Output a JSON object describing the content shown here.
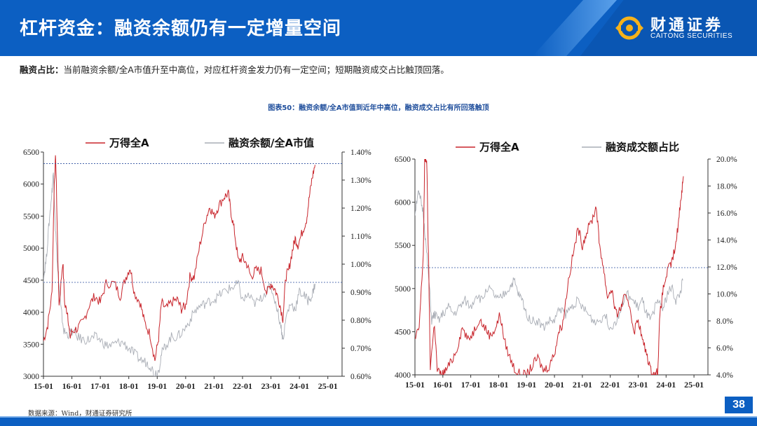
{
  "header": {
    "title": "杠杆资金：融资余额仍有一定增量空间",
    "brand_cn": "财通证券",
    "brand_en": "CAITONG SECURITIES",
    "color": "#0c5fc2"
  },
  "summary": {
    "label": "融资占比：",
    "text": "当前融资余额/全A市值升至中高位，对应杠杆资金发力仍有一定空间；短期融资成交占比触顶回落。"
  },
  "figure_title": "图表50：融资余额/全A市值到近年中高位，融资成交占比有所回落触顶",
  "source": "数据来源：Wind，财通证券研究所",
  "page_number": "38",
  "chart_data": [
    {
      "type": "line",
      "x": [
        "15-01",
        "16-01",
        "17-01",
        "18-01",
        "19-01",
        "20-01",
        "21-01",
        "22-01",
        "23-01",
        "24-01",
        "25-01"
      ],
      "y_left_lim": [
        3000,
        6500
      ],
      "y_left_ticks": [
        "3000",
        "3500",
        "4000",
        "4500",
        "5000",
        "5500",
        "6000",
        "6500"
      ],
      "y_right_lim": [
        0.006,
        0.014
      ],
      "y_right_ticks": [
        "0.60%",
        "0.70%",
        "0.80%",
        "0.90%",
        "1.00%",
        "1.10%",
        "1.20%",
        "1.30%",
        "1.40%"
      ],
      "reference_lines": [
        {
          "axis": "left",
          "value": 6320
        },
        {
          "axis": "right",
          "value": 0.00935
        }
      ],
      "legend_position": "top",
      "series": [
        {
          "name": "万得全A",
          "axis": "left",
          "color": "#c8252c",
          "values": [
            [
              0,
              3550
            ],
            [
              0.15,
              3800
            ],
            [
              0.3,
              4300
            ],
            [
              0.38,
              6000
            ],
            [
              0.43,
              6450
            ],
            [
              0.5,
              5000
            ],
            [
              0.55,
              4100
            ],
            [
              0.68,
              4800
            ],
            [
              0.75,
              4100
            ],
            [
              0.85,
              4000
            ],
            [
              0.93,
              3600
            ],
            [
              1,
              3700
            ],
            [
              1.2,
              3750
            ],
            [
              1.4,
              3850
            ],
            [
              1.6,
              4100
            ],
            [
              1.8,
              4250
            ],
            [
              2,
              4150
            ],
            [
              2.2,
              4450
            ],
            [
              2.5,
              4450
            ],
            [
              2.7,
              4250
            ],
            [
              2.9,
              4550
            ],
            [
              3.05,
              4700
            ],
            [
              3.2,
              4300
            ],
            [
              3.4,
              4150
            ],
            [
              3.55,
              3850
            ],
            [
              3.75,
              3650
            ],
            [
              3.92,
              3250
            ],
            [
              4.05,
              3600
            ],
            [
              4.15,
              4150
            ],
            [
              4.3,
              4050
            ],
            [
              4.5,
              4150
            ],
            [
              4.7,
              4200
            ],
            [
              4.85,
              4050
            ],
            [
              5.0,
              4100
            ],
            [
              5.15,
              4550
            ],
            [
              5.3,
              4550
            ],
            [
              5.5,
              5050
            ],
            [
              5.7,
              5450
            ],
            [
              5.85,
              5650
            ],
            [
              6.0,
              5500
            ],
            [
              6.15,
              5650
            ],
            [
              6.35,
              5800
            ],
            [
              6.5,
              5850
            ],
            [
              6.6,
              5550
            ],
            [
              6.72,
              5250
            ],
            [
              6.85,
              4800
            ],
            [
              7.0,
              4850
            ],
            [
              7.15,
              4750
            ],
            [
              7.3,
              4550
            ],
            [
              7.45,
              4650
            ],
            [
              7.65,
              4650
            ],
            [
              7.85,
              4300
            ],
            [
              8.0,
              4450
            ],
            [
              8.15,
              4350
            ],
            [
              8.3,
              4150
            ],
            [
              8.42,
              3900
            ],
            [
              8.52,
              4550
            ],
            [
              8.62,
              4650
            ],
            [
              8.75,
              4950
            ],
            [
              8.85,
              5150
            ],
            [
              8.95,
              5050
            ],
            [
              9.1,
              5250
            ],
            [
              9.25,
              5450
            ],
            [
              9.35,
              5800
            ],
            [
              9.45,
              6100
            ],
            [
              9.55,
              6300
            ]
          ]
        },
        {
          "name": "融资余额/全A市值",
          "axis": "right",
          "color": "#a9adb5",
          "values": [
            [
              0,
              0.0095
            ],
            [
              0.1,
              0.0102
            ],
            [
              0.2,
              0.0115
            ],
            [
              0.3,
              0.0126
            ],
            [
              0.35,
              0.0133
            ],
            [
              0.42,
              0.0113
            ],
            [
              0.5,
              0.0098
            ],
            [
              0.6,
              0.0085
            ],
            [
              0.72,
              0.0076
            ],
            [
              0.85,
              0.0075
            ],
            [
              1,
              0.0076
            ],
            [
              1.2,
              0.0074
            ],
            [
              1.4,
              0.0073
            ],
            [
              1.6,
              0.0073
            ],
            [
              1.8,
              0.0074
            ],
            [
              2,
              0.0073
            ],
            [
              2.2,
              0.0071
            ],
            [
              2.4,
              0.0071
            ],
            [
              2.6,
              0.0072
            ],
            [
              2.8,
              0.0072
            ],
            [
              3.0,
              0.007
            ],
            [
              3.2,
              0.0068
            ],
            [
              3.4,
              0.0066
            ],
            [
              3.6,
              0.0065
            ],
            [
              3.75,
              0.0064
            ],
            [
              3.9,
              0.0061
            ],
            [
              4.05,
              0.0062
            ],
            [
              4.15,
              0.0068
            ],
            [
              4.3,
              0.0071
            ],
            [
              4.5,
              0.0074
            ],
            [
              4.7,
              0.0074
            ],
            [
              4.9,
              0.0076
            ],
            [
              5.1,
              0.0079
            ],
            [
              5.3,
              0.0083
            ],
            [
              5.5,
              0.0085
            ],
            [
              5.7,
              0.0086
            ],
            [
              5.9,
              0.0087
            ],
            [
              6.1,
              0.0088
            ],
            [
              6.3,
              0.009
            ],
            [
              6.5,
              0.0091
            ],
            [
              6.7,
              0.0092
            ],
            [
              6.85,
              0.0093
            ],
            [
              7.0,
              0.0087
            ],
            [
              7.2,
              0.0089
            ],
            [
              7.4,
              0.0086
            ],
            [
              7.6,
              0.0087
            ],
            [
              7.8,
              0.009
            ],
            [
              8.0,
              0.0092
            ],
            [
              8.2,
              0.0085
            ],
            [
              8.35,
              0.0078
            ],
            [
              8.42,
              0.0073
            ],
            [
              8.55,
              0.0082
            ],
            [
              8.7,
              0.0086
            ],
            [
              8.85,
              0.0084
            ],
            [
              9.0,
              0.009
            ],
            [
              9.15,
              0.0089
            ],
            [
              9.3,
              0.0087
            ],
            [
              9.45,
              0.0089
            ],
            [
              9.55,
              0.0093
            ]
          ]
        }
      ]
    },
    {
      "type": "line",
      "x": [
        "15-01",
        "16-01",
        "17-01",
        "18-01",
        "19-01",
        "20-01",
        "21-01",
        "22-01",
        "23-01",
        "24-01",
        "25-01"
      ],
      "y_left_lim": [
        4000,
        6500
      ],
      "y_left_ticks": [
        "4000",
        "4500",
        "5000",
        "5500",
        "6000",
        "6500"
      ],
      "y_right_lim": [
        0.04,
        0.2
      ],
      "y_right_ticks": [
        "4.0%",
        "6.0%",
        "8.0%",
        "10.0%",
        "12.0%",
        "14.0%",
        "16.0%",
        "18.0%",
        "20.0%"
      ],
      "reference_lines": [
        {
          "axis": "right",
          "value": 0.1195
        }
      ],
      "legend_position": "top",
      "series": [
        {
          "name": "万得全A",
          "axis": "left",
          "color": "#c8252c",
          "values": [
            [
              0,
              4400
            ],
            [
              0.15,
              4550
            ],
            [
              0.3,
              5400
            ],
            [
              0.35,
              6500
            ],
            [
              0.42,
              6500
            ],
            [
              0.5,
              5100
            ],
            [
              0.55,
              4100
            ],
            [
              0.7,
              4600
            ],
            [
              0.8,
              4050
            ],
            [
              0.95,
              4000
            ],
            [
              1.1,
              4050
            ],
            [
              1.3,
              4150
            ],
            [
              1.5,
              4300
            ],
            [
              1.7,
              4550
            ],
            [
              1.9,
              4400
            ],
            [
              2.1,
              4500
            ],
            [
              2.3,
              4650
            ],
            [
              2.5,
              4550
            ],
            [
              2.7,
              4450
            ],
            [
              2.9,
              4550
            ],
            [
              3.05,
              4700
            ],
            [
              3.2,
              4400
            ],
            [
              3.4,
              4200
            ],
            [
              3.6,
              4050
            ],
            [
              3.8,
              4000
            ],
            [
              4.0,
              4000
            ],
            [
              4.2,
              4100
            ],
            [
              4.4,
              4200
            ],
            [
              4.6,
              4050
            ],
            [
              4.8,
              4100
            ],
            [
              5.0,
              4250
            ],
            [
              5.15,
              4500
            ],
            [
              5.3,
              4600
            ],
            [
              5.5,
              5100
            ],
            [
              5.7,
              5450
            ],
            [
              5.85,
              5700
            ],
            [
              6.0,
              5500
            ],
            [
              6.15,
              5650
            ],
            [
              6.35,
              5800
            ],
            [
              6.5,
              5950
            ],
            [
              6.6,
              5550
            ],
            [
              6.75,
              5250
            ],
            [
              6.9,
              4900
            ],
            [
              7.05,
              5000
            ],
            [
              7.2,
              4700
            ],
            [
              7.35,
              4750
            ],
            [
              7.5,
              4900
            ],
            [
              7.7,
              4800
            ],
            [
              7.85,
              4500
            ],
            [
              8.0,
              4650
            ],
            [
              8.15,
              4400
            ],
            [
              8.3,
              4250
            ],
            [
              8.45,
              4050
            ],
            [
              8.6,
              4000
            ],
            [
              8.7,
              4050
            ],
            [
              8.78,
              4700
            ],
            [
              8.9,
              5000
            ],
            [
              9.05,
              5200
            ],
            [
              9.2,
              5300
            ],
            [
              9.35,
              5500
            ],
            [
              9.45,
              5800
            ],
            [
              9.55,
              6100
            ],
            [
              9.62,
              6300
            ]
          ]
        },
        {
          "name": "融资成交额占比",
          "axis": "right",
          "color": "#a9adb5",
          "values": [
            [
              0,
              0.16
            ],
            [
              0.1,
              0.175
            ],
            [
              0.2,
              0.17
            ],
            [
              0.3,
              0.16
            ],
            [
              0.4,
              0.135
            ],
            [
              0.5,
              0.11
            ],
            [
              0.6,
              0.08
            ],
            [
              0.7,
              0.085
            ],
            [
              0.85,
              0.08
            ],
            [
              1.0,
              0.085
            ],
            [
              1.2,
              0.09
            ],
            [
              1.4,
              0.085
            ],
            [
              1.6,
              0.09
            ],
            [
              1.8,
              0.095
            ],
            [
              2.0,
              0.09
            ],
            [
              2.2,
              0.1
            ],
            [
              2.4,
              0.095
            ],
            [
              2.6,
              0.105
            ],
            [
              2.8,
              0.1
            ],
            [
              3.0,
              0.095
            ],
            [
              3.2,
              0.1
            ],
            [
              3.4,
              0.105
            ],
            [
              3.55,
              0.11
            ],
            [
              3.7,
              0.1
            ],
            [
              3.85,
              0.095
            ],
            [
              4.0,
              0.085
            ],
            [
              4.2,
              0.08
            ],
            [
              4.4,
              0.08
            ],
            [
              4.6,
              0.075
            ],
            [
              4.8,
              0.08
            ],
            [
              5.0,
              0.08
            ],
            [
              5.2,
              0.09
            ],
            [
              5.4,
              0.085
            ],
            [
              5.6,
              0.09
            ],
            [
              5.8,
              0.095
            ],
            [
              6.0,
              0.09
            ],
            [
              6.2,
              0.085
            ],
            [
              6.4,
              0.08
            ],
            [
              6.6,
              0.08
            ],
            [
              6.8,
              0.085
            ],
            [
              7.0,
              0.075
            ],
            [
              7.2,
              0.08
            ],
            [
              7.4,
              0.09
            ],
            [
              7.6,
              0.1
            ],
            [
              7.8,
              0.095
            ],
            [
              8.0,
              0.09
            ],
            [
              8.15,
              0.095
            ],
            [
              8.3,
              0.085
            ],
            [
              8.45,
              0.08
            ],
            [
              8.6,
              0.09
            ],
            [
              8.75,
              0.095
            ],
            [
              8.9,
              0.09
            ],
            [
              9.05,
              0.1
            ],
            [
              9.2,
              0.105
            ],
            [
              9.35,
              0.095
            ],
            [
              9.5,
              0.1
            ],
            [
              9.6,
              0.11
            ]
          ]
        }
      ]
    }
  ]
}
